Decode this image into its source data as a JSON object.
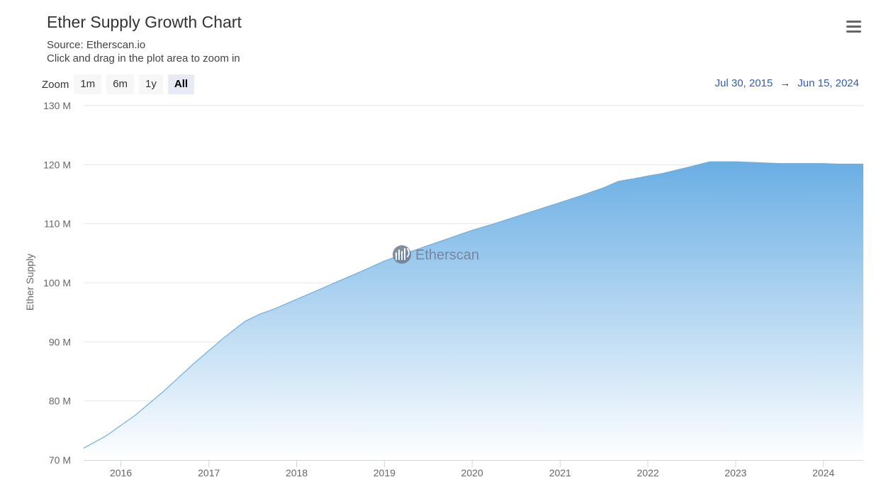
{
  "header": {
    "title": "Ether Supply Growth Chart",
    "source": "Source: Etherscan.io",
    "hint": "Click and drag in the plot area to zoom in"
  },
  "zoom": {
    "label": "Zoom",
    "buttons": [
      "1m",
      "6m",
      "1y",
      "All"
    ],
    "active": "All"
  },
  "range": {
    "from": "Jul 30, 2015",
    "arrow": "→",
    "to": "Jun 15, 2024"
  },
  "watermark": "Etherscan",
  "icons": {
    "menu": "hamburger-menu-icon",
    "watermark_logo": "etherscan-logo-icon"
  },
  "colors": {
    "line": "#6aaee4",
    "fill_top": "#6aaee4",
    "fill_bottom": "#ffffff",
    "range_text": "#335cad"
  },
  "chart_data": {
    "type": "area",
    "ylabel": "Ether Supply",
    "xlabel": "",
    "ylim": [
      70,
      130
    ],
    "y_unit": "M",
    "y_ticks": [
      "70 M",
      "80 M",
      "90 M",
      "100 M",
      "110 M",
      "120 M",
      "130 M"
    ],
    "x_ticks": [
      "2016",
      "2017",
      "2018",
      "2019",
      "2020",
      "2021",
      "2022",
      "2023",
      "2024"
    ],
    "xlim": [
      "2015-07-30",
      "2024-06-15"
    ],
    "grid": true,
    "legend": "none",
    "series": [
      {
        "x": [
          "2015-07-30",
          "2015-11-01",
          "2016-03-01",
          "2016-07-01",
          "2016-11-01",
          "2017-03-01",
          "2017-06-01",
          "2017-08-01",
          "2017-10-01",
          "2018-01-01",
          "2018-04-01",
          "2018-07-01",
          "2018-10-01",
          "2019-01-01",
          "2019-04-01",
          "2019-07-01",
          "2019-10-01",
          "2020-01-01",
          "2020-04-01",
          "2020-07-01",
          "2020-10-01",
          "2021-01-01",
          "2021-04-01",
          "2021-07-01",
          "2021-09-01",
          "2021-11-01",
          "2022-01-01",
          "2022-03-01",
          "2022-05-01",
          "2022-07-01",
          "2022-09-15",
          "2022-11-01",
          "2023-01-01",
          "2023-03-01",
          "2023-05-01",
          "2023-07-01",
          "2023-09-01",
          "2023-11-01",
          "2024-01-01",
          "2024-03-01",
          "2024-06-15"
        ],
        "values": [
          72.0,
          74.1,
          77.6,
          81.8,
          86.4,
          90.6,
          93.5,
          94.7,
          95.6,
          97.2,
          98.8,
          100.4,
          102.0,
          103.7,
          105.0,
          106.3,
          107.6,
          108.9,
          110.0,
          111.2,
          112.4,
          113.6,
          114.8,
          116.1,
          117.2,
          117.6,
          118.1,
          118.5,
          119.1,
          119.7,
          120.5,
          120.5,
          120.5,
          120.4,
          120.3,
          120.2,
          120.2,
          120.2,
          120.2,
          120.1,
          120.1
        ]
      }
    ]
  }
}
